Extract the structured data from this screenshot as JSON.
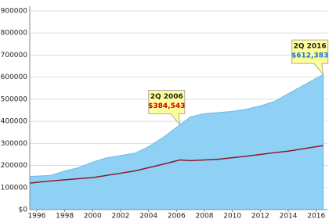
{
  "chart_data": {
    "type": "area",
    "x": [
      1995.5,
      1997,
      1998,
      1999,
      2000,
      2001,
      2002,
      2003,
      2004,
      2005,
      2006.25,
      2007,
      2008,
      2009,
      2010,
      2011,
      2012,
      2013,
      2014,
      2015,
      2016.5
    ],
    "series": [
      {
        "type": "area",
        "color": "#8fd0f5",
        "values": [
          150000,
          155000,
          175000,
          190000,
          215000,
          235000,
          245000,
          255000,
          285000,
          325000,
          384543,
          420000,
          435000,
          440000,
          445000,
          455000,
          470000,
          490000,
          525000,
          560000,
          612383
        ]
      },
      {
        "type": "line",
        "color": "#8b1a2b",
        "values": [
          120000,
          130000,
          135000,
          140000,
          145000,
          155000,
          165000,
          175000,
          190000,
          205000,
          225000,
          222000,
          225000,
          228000,
          235000,
          242000,
          250000,
          258000,
          265000,
          275000,
          290000
        ]
      }
    ],
    "annotations": [
      {
        "x": 2006.25,
        "value": 384543,
        "label": "2Q 2006",
        "value_label": "$384,543",
        "color": "#cc0000"
      },
      {
        "x": 2016.5,
        "value": 612383,
        "label": "2Q 2016",
        "value_label": "$612,383",
        "color": "#1a6fd6"
      }
    ],
    "xlim": [
      1995.5,
      2016.8
    ],
    "xticks": [
      1996,
      1998,
      2000,
      2002,
      2004,
      2006,
      2008,
      2010,
      2012,
      2014,
      2016
    ],
    "ylim": [
      0,
      900000
    ],
    "yticks": [
      {
        "value": 0,
        "label": "$0"
      },
      {
        "value": 100000,
        "label": "$100000"
      },
      {
        "value": 200000,
        "label": "$200000"
      },
      {
        "value": 300000,
        "label": "$300000"
      },
      {
        "value": 400000,
        "label": "$400000"
      },
      {
        "value": 500000,
        "label": "$500000"
      },
      {
        "value": 600000,
        "label": "$600000"
      },
      {
        "value": 700000,
        "label": "$700000"
      },
      {
        "value": 800000,
        "label": "$800000"
      },
      {
        "value": 900000,
        "label": "$900000"
      }
    ],
    "grid": true
  }
}
